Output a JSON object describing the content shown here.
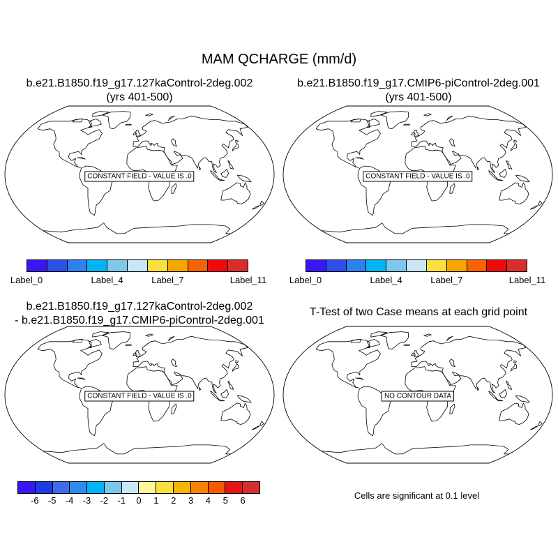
{
  "figure": {
    "title": "MAM QCHARGE (mm/d)",
    "panels": [
      {
        "title_line1": "b.e21.B1850.f19_g17.127kaControl-2deg.002",
        "title_line2": "(yrs 401-500)",
        "overlay": "CONSTANT FIELD - VALUE IS .0"
      },
      {
        "title_line1": "b.e21.B1850.f19_g17.CMIP6-piControl-2deg.001",
        "title_line2": "(yrs 401-500)",
        "overlay": "CONSTANT FIELD - VALUE IS .0"
      },
      {
        "title_line1": "b.e21.B1850.f19_g17.127kaControl-2deg.002",
        "title_line2": "- b.e21.B1850.f19_g17.CMIP6-piControl-2deg.001",
        "overlay": "CONSTANT FIELD - VALUE IS .0"
      },
      {
        "title_line1": "T-Test of two Case means at each grid point",
        "title_line2": "",
        "overlay": "NO CONTOUR DATA"
      }
    ],
    "note": "Cells are significant at 0.1 level"
  },
  "colorbars": {
    "case": {
      "colors": [
        "#3a16f5",
        "#2d50e8",
        "#2e82f0",
        "#00b4f5",
        "#7ec8eb",
        "#c8e6f5",
        "#fae03c",
        "#f5a500",
        "#f56400",
        "#f00a0a",
        "#d72d2d"
      ],
      "labels": [
        "Label_0",
        "Label_4",
        "Label_7",
        "Label_11"
      ],
      "label_index": [
        0,
        4,
        7,
        11
      ]
    },
    "diff": {
      "colors": [
        "#3a16f5",
        "#1e3ce6",
        "#3c6ee6",
        "#2d8ceb",
        "#00b4f5",
        "#78c8eb",
        "#c8e6f5",
        "#fff59b",
        "#fae03c",
        "#f5b400",
        "#f58200",
        "#f55a00",
        "#e61414",
        "#d72d2d"
      ],
      "labels": [
        "-6",
        "-5",
        "-4",
        "-3",
        "-2",
        "-1",
        "0",
        "1",
        "2",
        "3",
        "4",
        "5",
        "6"
      ]
    }
  }
}
